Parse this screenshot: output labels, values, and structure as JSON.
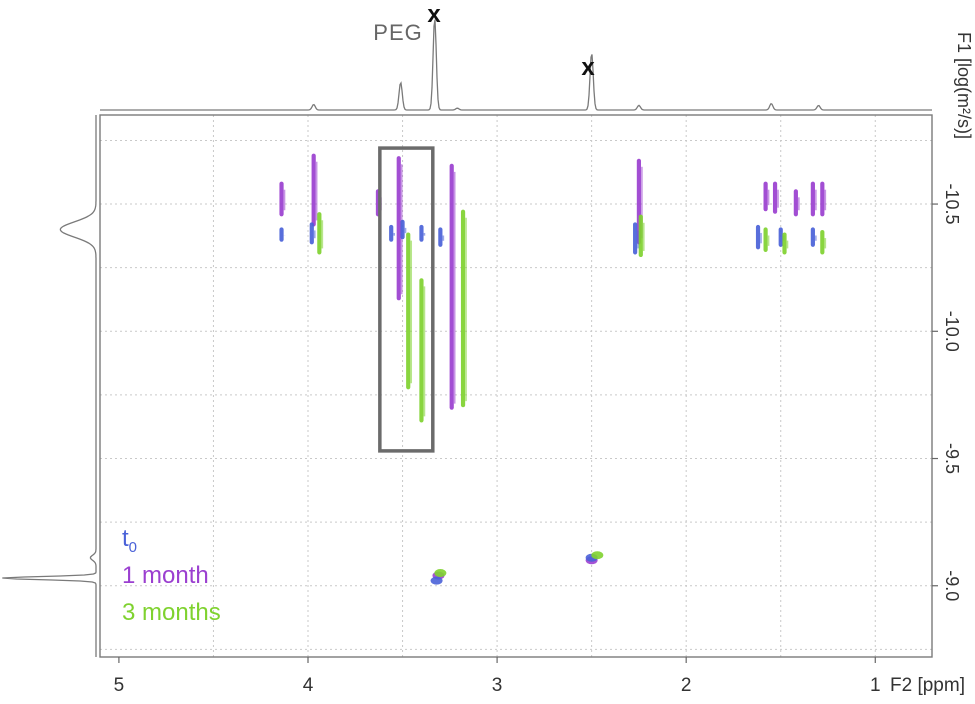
{
  "chart_data": {
    "type": "scatter",
    "title": "",
    "xlabel": "F2 [ppm]",
    "ylabel": "F1 [log(m²/s)]",
    "xlim": [
      5.1,
      0.7
    ],
    "ylim": [
      -10.85,
      -8.72
    ],
    "x_ticks": [
      "5",
      "4",
      "3",
      "2",
      "1"
    ],
    "y_ticks": [
      "-10.5",
      "-10.0",
      "-9.5",
      "-9.0"
    ],
    "x_tick_values": [
      5,
      4,
      3,
      2,
      1
    ],
    "y_tick_values": [
      -10.5,
      -10.0,
      -9.5,
      -9.0
    ],
    "grid": true,
    "legend_position": "bottom-left",
    "legend": {
      "t0_main": "t",
      "t0_sub": "0",
      "one_month": "1 month",
      "three_months": "3 months"
    },
    "annotations": {
      "peg_label": "PEG",
      "x_mark_1": "x",
      "x_mark_2": "x",
      "peg_box": {
        "x_from": 3.62,
        "x_to": 3.34,
        "y_from": -10.72,
        "y_to": -9.53
      }
    },
    "series": [
      {
        "name": "1 month",
        "color": "#9b3fd0",
        "streaks": [
          [
            4.14,
            -10.58,
            -10.46
          ],
          [
            3.97,
            -10.69,
            -10.42
          ],
          [
            3.52,
            -10.68,
            -10.13
          ],
          [
            3.63,
            -10.55,
            -10.46
          ],
          [
            3.24,
            -10.65,
            -9.7
          ],
          [
            2.25,
            -10.67,
            -10.35
          ],
          [
            1.58,
            -10.58,
            -10.48
          ],
          [
            1.53,
            -10.58,
            -10.47
          ],
          [
            1.42,
            -10.55,
            -10.46
          ],
          [
            1.33,
            -10.58,
            -10.46
          ],
          [
            1.28,
            -10.58,
            -10.46
          ]
        ],
        "points": [
          [
            3.31,
            -9.04
          ],
          [
            2.5,
            -9.1
          ]
        ]
      },
      {
        "name": "t0",
        "color": "#4a62d8",
        "streaks": [
          [
            4.14,
            -10.4,
            -10.36
          ],
          [
            3.98,
            -10.42,
            -10.35
          ],
          [
            3.56,
            -10.41,
            -10.36
          ],
          [
            3.5,
            -10.43,
            -10.37
          ],
          [
            3.4,
            -10.41,
            -10.36
          ],
          [
            3.3,
            -10.4,
            -10.34
          ],
          [
            2.27,
            -10.42,
            -10.31
          ],
          [
            1.62,
            -10.41,
            -10.33
          ],
          [
            1.5,
            -10.4,
            -10.34
          ],
          [
            1.33,
            -10.4,
            -10.34
          ]
        ],
        "points": [
          [
            3.32,
            -9.02
          ],
          [
            2.5,
            -9.11
          ]
        ]
      },
      {
        "name": "3 months",
        "color": "#7fd22f",
        "streaks": [
          [
            3.94,
            -10.46,
            -10.31
          ],
          [
            3.47,
            -10.38,
            -9.78
          ],
          [
            3.4,
            -10.2,
            -9.65
          ],
          [
            3.18,
            -10.47,
            -9.71
          ],
          [
            2.24,
            -10.45,
            -10.3
          ],
          [
            1.58,
            -10.4,
            -10.32
          ],
          [
            1.48,
            -10.38,
            -10.31
          ],
          [
            1.28,
            -10.39,
            -10.31
          ]
        ],
        "points": [
          [
            3.3,
            -9.05
          ],
          [
            2.47,
            -9.12
          ]
        ]
      }
    ],
    "projection_f2_peaks": [
      {
        "ppm": 3.97,
        "height": 0.06
      },
      {
        "ppm": 3.51,
        "height": 0.3
      },
      {
        "ppm": 3.33,
        "height": 1.0
      },
      {
        "ppm": 3.21,
        "height": 0.02
      },
      {
        "ppm": 2.5,
        "height": 0.62
      },
      {
        "ppm": 2.25,
        "height": 0.05
      },
      {
        "ppm": 1.55,
        "height": 0.07
      },
      {
        "ppm": 1.3,
        "height": 0.05
      }
    ],
    "projection_f1_peaks": [
      {
        "value": -10.4,
        "height": 0.38,
        "width": 0.03
      },
      {
        "value": -9.11,
        "height": 0.06,
        "width": 0.01
      },
      {
        "value": -9.03,
        "height": 1.0,
        "width": 0.006
      }
    ]
  }
}
